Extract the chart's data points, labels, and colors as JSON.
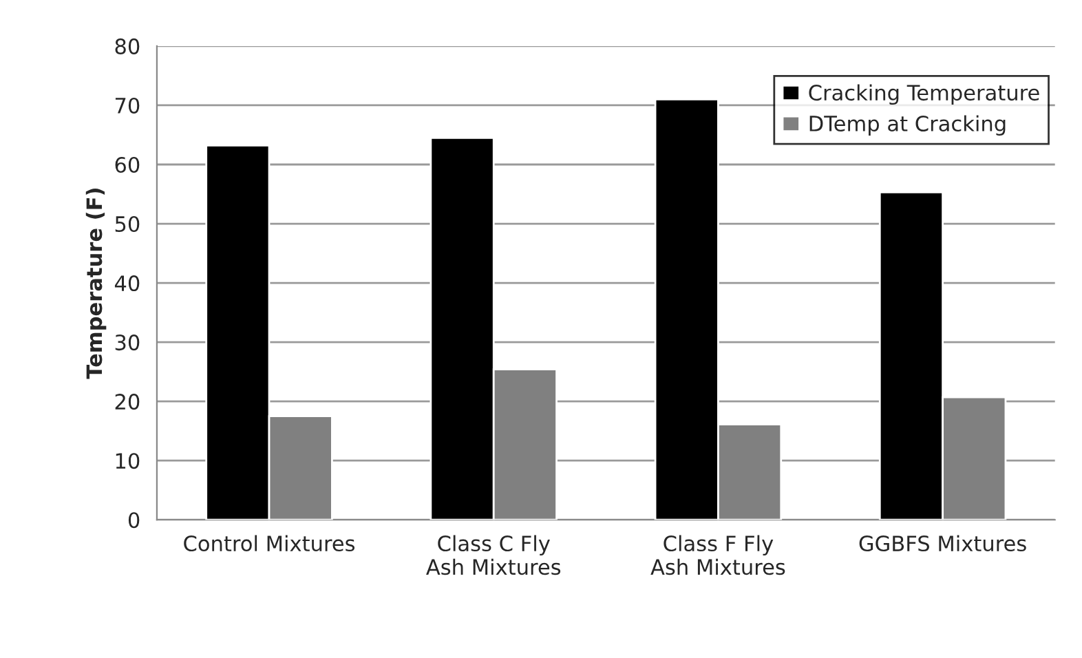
{
  "chart_data": {
    "type": "bar",
    "ylabel": "Temperature (F)",
    "categories": [
      "Control Mixtures",
      "Class C Fly Ash Mixtures",
      "Class F Fly Ash Mixtures",
      "GGBFS Mixtures"
    ],
    "series": [
      {
        "name": "Cracking Temperature",
        "color": "#000000",
        "values": [
          63.2,
          64.5,
          71.0,
          55.3
        ]
      },
      {
        "name": "DTemp at Cracking",
        "color": "#808080",
        "values": [
          17.5,
          25.4,
          16.1,
          20.7
        ]
      }
    ],
    "ylim": [
      0,
      80
    ],
    "yticks": [
      0,
      10,
      20,
      30,
      40,
      50,
      60,
      70,
      80
    ],
    "grid": "y",
    "legend": "top right"
  }
}
